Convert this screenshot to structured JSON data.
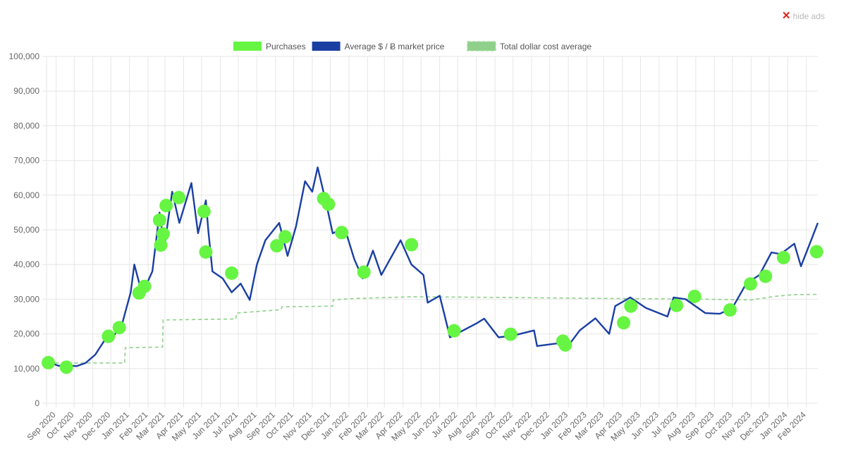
{
  "hide_ads": {
    "label": "hide ads",
    "icon": "close-icon"
  },
  "colors": {
    "purchases": "#66f542",
    "price": "#1a3fa3",
    "dca": "#8fd08a",
    "grid": "#e6e6e6",
    "tick_text": "#666666"
  },
  "legend": {
    "items": [
      {
        "label": "Purchases",
        "color": "#66f542",
        "style": "box"
      },
      {
        "label": "Average $ / Ƀ market price",
        "color": "#1a3fa3",
        "style": "box"
      },
      {
        "label": "Total dollar cost average",
        "color": "#8fd08a",
        "style": "dashed-box"
      }
    ],
    "placement": "top-center"
  },
  "chart_data": {
    "type": "line",
    "title": "",
    "xlabel": "",
    "ylabel": "",
    "ylim": [
      0,
      100000
    ],
    "y_ticks": [
      "0",
      "10,000",
      "20,000",
      "30,000",
      "40,000",
      "50,000",
      "60,000",
      "70,000",
      "80,000",
      "90,000",
      "100,000"
    ],
    "x_ticks": [
      "Sep 2020",
      "Oct 2020",
      "Nov 2020",
      "Dec 2020",
      "Jan 2021",
      "Feb 2021",
      "Mar 2021",
      "Apr 2021",
      "May 2021",
      "Jun 2021",
      "Jul 2021",
      "Aug 2021",
      "Sep 2021",
      "Oct 2021",
      "Nov 2021",
      "Dec 2021",
      "Jan 2022",
      "Feb 2022",
      "Mar 2022",
      "Apr 2022",
      "May 2022",
      "Jun 2022",
      "Jul 2022",
      "Aug 2022",
      "Sep 2022",
      "Oct 2022",
      "Nov 2022",
      "Dec 2022",
      "Jan 2023",
      "Feb 2023",
      "Mar 2023",
      "Apr 2023",
      "May 2023",
      "Jun 2023",
      "Jul 2023",
      "Aug 2023",
      "Sep 2023",
      "Oct 2023",
      "Nov 2023",
      "Dec 2023",
      "Jan 2024",
      "Feb 2024"
    ],
    "x_range": [
      "2020-08-16",
      "2024-02-20"
    ],
    "grid": true,
    "series": [
      {
        "name": "Average $ / Ƀ market price",
        "points": [
          [
            "2020-08-20",
            11800
          ],
          [
            "2020-09-05",
            10800
          ],
          [
            "2020-09-20",
            11000
          ],
          [
            "2020-10-05",
            10700
          ],
          [
            "2020-10-20",
            11600
          ],
          [
            "2020-11-05",
            14000
          ],
          [
            "2020-11-20",
            18000
          ],
          [
            "2020-12-05",
            19200
          ],
          [
            "2020-12-20",
            23000
          ],
          [
            "2021-01-03",
            32000
          ],
          [
            "2021-01-09",
            40000
          ],
          [
            "2021-01-22",
            31500
          ],
          [
            "2021-02-08",
            38000
          ],
          [
            "2021-02-20",
            55000
          ],
          [
            "2021-02-28",
            45000
          ],
          [
            "2021-03-13",
            61000
          ],
          [
            "2021-03-25",
            52000
          ],
          [
            "2021-04-14",
            63500
          ],
          [
            "2021-04-25",
            49000
          ],
          [
            "2021-05-08",
            58500
          ],
          [
            "2021-05-12",
            50000
          ],
          [
            "2021-05-19",
            38000
          ],
          [
            "2021-06-05",
            36000
          ],
          [
            "2021-06-20",
            32000
          ],
          [
            "2021-07-05",
            34500
          ],
          [
            "2021-07-20",
            29800
          ],
          [
            "2021-08-01",
            40000
          ],
          [
            "2021-08-15",
            47000
          ],
          [
            "2021-09-07",
            52000
          ],
          [
            "2021-09-21",
            42500
          ],
          [
            "2021-10-05",
            51000
          ],
          [
            "2021-10-20",
            64000
          ],
          [
            "2021-11-01",
            61000
          ],
          [
            "2021-11-10",
            68000
          ],
          [
            "2021-11-25",
            57000
          ],
          [
            "2021-12-05",
            49000
          ],
          [
            "2021-12-25",
            50500
          ],
          [
            "2022-01-10",
            41500
          ],
          [
            "2022-01-24",
            36000
          ],
          [
            "2022-02-10",
            44000
          ],
          [
            "2022-02-24",
            37000
          ],
          [
            "2022-03-28",
            47000
          ],
          [
            "2022-04-15",
            40000
          ],
          [
            "2022-05-05",
            37000
          ],
          [
            "2022-05-12",
            29000
          ],
          [
            "2022-06-01",
            31000
          ],
          [
            "2022-06-14",
            22000
          ],
          [
            "2022-06-18",
            19000
          ],
          [
            "2022-07-10",
            21000
          ],
          [
            "2022-08-01",
            23000
          ],
          [
            "2022-08-14",
            24400
          ],
          [
            "2022-09-07",
            19000
          ],
          [
            "2022-10-01",
            19500
          ],
          [
            "2022-11-05",
            21000
          ],
          [
            "2022-11-10",
            16500
          ],
          [
            "2022-12-15",
            17300
          ],
          [
            "2023-01-01",
            16600
          ],
          [
            "2023-01-20",
            21000
          ],
          [
            "2023-02-15",
            24500
          ],
          [
            "2023-03-10",
            20000
          ],
          [
            "2023-03-20",
            28000
          ],
          [
            "2023-04-14",
            30500
          ],
          [
            "2023-05-10",
            27500
          ],
          [
            "2023-06-15",
            25000
          ],
          [
            "2023-06-25",
            30500
          ],
          [
            "2023-07-15",
            30000
          ],
          [
            "2023-08-17",
            26000
          ],
          [
            "2023-09-10",
            25800
          ],
          [
            "2023-10-01",
            27500
          ],
          [
            "2023-10-24",
            34500
          ],
          [
            "2023-11-15",
            37000
          ],
          [
            "2023-12-05",
            43500
          ],
          [
            "2023-12-20",
            43000
          ],
          [
            "2024-01-12",
            46000
          ],
          [
            "2024-01-23",
            39500
          ],
          [
            "2024-02-10",
            47500
          ],
          [
            "2024-02-20",
            52000
          ]
        ]
      },
      {
        "name": "Total dollar cost average",
        "points": [
          [
            "2020-08-20",
            11600
          ],
          [
            "2020-12-15",
            11600
          ],
          [
            "2020-12-24",
            11600
          ],
          [
            "2020-12-25",
            16000
          ],
          [
            "2021-02-25",
            16200
          ],
          [
            "2021-02-26",
            24000
          ],
          [
            "2021-06-27",
            24300
          ],
          [
            "2021-06-28",
            26000
          ],
          [
            "2021-09-10",
            27000
          ],
          [
            "2021-09-12",
            27800
          ],
          [
            "2021-12-05",
            28000
          ],
          [
            "2021-12-06",
            29800
          ],
          [
            "2022-01-10",
            30200
          ],
          [
            "2022-04-15",
            30700
          ],
          [
            "2022-09-20",
            30500
          ],
          [
            "2023-03-15",
            30200
          ],
          [
            "2023-08-15",
            30000
          ],
          [
            "2023-11-01",
            29800
          ],
          [
            "2023-12-10",
            30800
          ],
          [
            "2024-01-10",
            31300
          ],
          [
            "2024-02-20",
            31400
          ]
        ]
      },
      {
        "name": "Purchases",
        "points": [
          [
            "2020-08-19",
            11700
          ],
          [
            "2020-09-18",
            10400
          ],
          [
            "2020-11-27",
            19300
          ],
          [
            "2020-12-15",
            21800
          ],
          [
            "2021-01-17",
            31800
          ],
          [
            "2021-01-26",
            33700
          ],
          [
            "2021-02-20",
            52800
          ],
          [
            "2021-02-22",
            45600
          ],
          [
            "2021-02-26",
            48800
          ],
          [
            "2021-03-03",
            57000
          ],
          [
            "2021-03-24",
            59300
          ],
          [
            "2021-05-05",
            55300
          ],
          [
            "2021-05-08",
            43600
          ],
          [
            "2021-06-20",
            37500
          ],
          [
            "2021-09-03",
            45400
          ],
          [
            "2021-09-17",
            48000
          ],
          [
            "2021-11-20",
            59000
          ],
          [
            "2021-11-28",
            57400
          ],
          [
            "2021-12-20",
            49200
          ],
          [
            "2022-01-26",
            37800
          ],
          [
            "2022-04-15",
            45700
          ],
          [
            "2022-06-25",
            20900
          ],
          [
            "2022-09-27",
            19900
          ],
          [
            "2022-12-23",
            17900
          ],
          [
            "2022-12-27",
            16800
          ],
          [
            "2023-04-03",
            23200
          ],
          [
            "2023-04-15",
            28000
          ],
          [
            "2023-06-30",
            28200
          ],
          [
            "2023-07-30",
            30800
          ],
          [
            "2023-09-27",
            26900
          ],
          [
            "2023-10-31",
            34400
          ],
          [
            "2023-11-25",
            36600
          ],
          [
            "2023-12-25",
            42000
          ],
          [
            "2024-02-18",
            43700
          ]
        ]
      }
    ]
  }
}
